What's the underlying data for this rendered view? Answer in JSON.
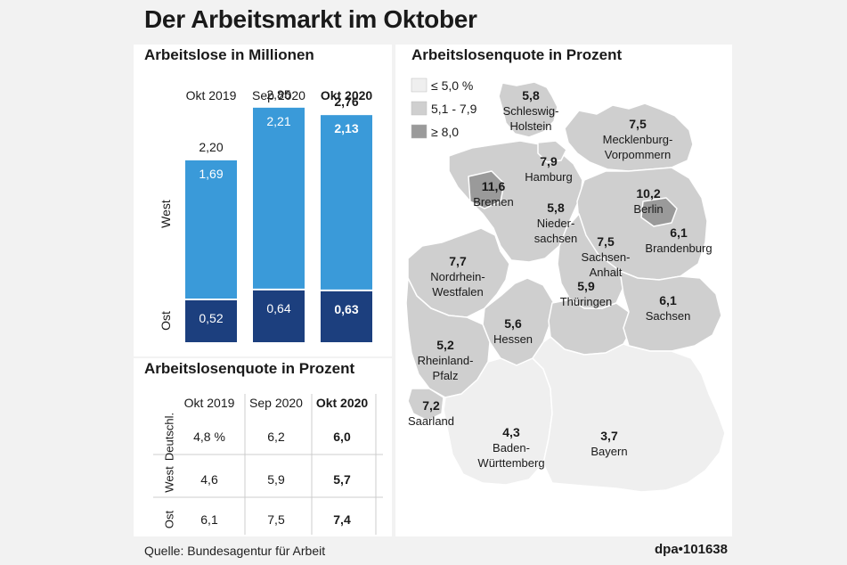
{
  "title": "Der Arbeitsmarkt im Oktober",
  "source": "Quelle: Bundesagentur für Arbeit",
  "credit": "dpa•101638",
  "colors": {
    "west": "#3a9ad9",
    "ost": "#1c3f7e",
    "low": "#efefef",
    "mid": "#cfcfcf",
    "high": "#9a9a9a"
  },
  "chart_data": [
    {
      "type": "bar",
      "title": "Arbeitslose in Millionen",
      "categories": [
        "Okt 2019",
        "Sep 2020",
        "Okt 2020"
      ],
      "highlight_category": "Okt 2020",
      "stack_labels": {
        "top": "West",
        "bottom": "Ost"
      },
      "totals": [
        "2,20",
        "2,85",
        "2,76"
      ],
      "series": [
        {
          "name": "Ost",
          "values": [
            0.52,
            0.64,
            0.63
          ],
          "labels": [
            "0,52",
            "0,64",
            "0,63"
          ]
        },
        {
          "name": "West",
          "values": [
            1.69,
            2.21,
            2.13
          ],
          "labels": [
            "1,69",
            "2,21",
            "2,13"
          ]
        }
      ],
      "ylim": [
        0,
        3.0
      ],
      "stacked": true
    },
    {
      "type": "table",
      "title": "Arbeitslosenquote in Prozent",
      "columns": [
        "Okt 2019",
        "Sep 2020",
        "Okt 2020"
      ],
      "highlight_column": "Okt 2020",
      "rows": [
        {
          "label": "Deutschl.",
          "values": [
            "4,8 %",
            "6,2",
            "6,0"
          ]
        },
        {
          "label": "West",
          "values": [
            "4,6",
            "5,9",
            "5,7"
          ]
        },
        {
          "label": "Ost",
          "values": [
            "6,1",
            "7,5",
            "7,4"
          ]
        }
      ]
    },
    {
      "type": "heatmap",
      "title": "Arbeitslosenquote in Prozent",
      "legend": [
        {
          "label": "≤ 5,0 %",
          "class": "low"
        },
        {
          "label": "5,1 - 7,9",
          "class": "mid"
        },
        {
          "label": "≥ 8,0",
          "class": "high"
        }
      ],
      "regions": [
        {
          "name": "Schleswig-Holstein",
          "lines": [
            "Schleswig-",
            "Holstein"
          ],
          "value": "5,8",
          "class": "mid"
        },
        {
          "name": "Mecklenburg-Vorpommern",
          "lines": [
            "Mecklenburg-",
            "Vorpommern"
          ],
          "value": "7,5",
          "class": "mid"
        },
        {
          "name": "Hamburg",
          "lines": [
            "Hamburg"
          ],
          "value": "7,9",
          "class": "mid"
        },
        {
          "name": "Bremen",
          "lines": [
            "Bremen"
          ],
          "value": "11,6",
          "class": "high"
        },
        {
          "name": "Niedersachsen",
          "lines": [
            "Nieder-",
            "sachsen"
          ],
          "value": "5,8",
          "class": "mid"
        },
        {
          "name": "Berlin",
          "lines": [
            "Berlin"
          ],
          "value": "10,2",
          "class": "high"
        },
        {
          "name": "Brandenburg",
          "lines": [
            "Brandenburg"
          ],
          "value": "6,1",
          "class": "mid"
        },
        {
          "name": "Sachsen-Anhalt",
          "lines": [
            "Sachsen-",
            "Anhalt"
          ],
          "value": "7,5",
          "class": "mid"
        },
        {
          "name": "Nordrhein-Westfalen",
          "lines": [
            "Nordrhein-",
            "Westfalen"
          ],
          "value": "7,7",
          "class": "mid"
        },
        {
          "name": "Thüringen",
          "lines": [
            "Thüringen"
          ],
          "value": "5,9",
          "class": "mid"
        },
        {
          "name": "Sachsen",
          "lines": [
            "Sachsen"
          ],
          "value": "6,1",
          "class": "mid"
        },
        {
          "name": "Hessen",
          "lines": [
            "Hessen"
          ],
          "value": "5,6",
          "class": "mid"
        },
        {
          "name": "Rheinland-Pfalz",
          "lines": [
            "Rheinland-",
            "Pfalz"
          ],
          "value": "5,2",
          "class": "mid"
        },
        {
          "name": "Saarland",
          "lines": [
            "Saarland"
          ],
          "value": "7,2",
          "class": "mid"
        },
        {
          "name": "Baden-Württemberg",
          "lines": [
            "Baden-",
            "Württemberg"
          ],
          "value": "4,3",
          "class": "low"
        },
        {
          "name": "Bayern",
          "lines": [
            "Bayern"
          ],
          "value": "3,7",
          "class": "low"
        }
      ]
    }
  ]
}
